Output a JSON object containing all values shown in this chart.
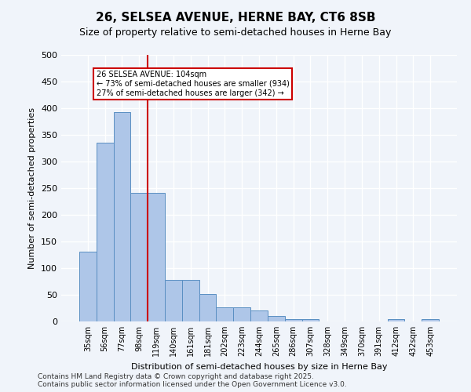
{
  "title_line1": "26, SELSEA AVENUE, HERNE BAY, CT6 8SB",
  "title_line2": "Size of property relative to semi-detached houses in Herne Bay",
  "xlabel": "Distribution of semi-detached houses by size in Herne Bay",
  "ylabel": "Number of semi-detached properties",
  "categories": [
    "35sqm",
    "56sqm",
    "77sqm",
    "98sqm",
    "119sqm",
    "140sqm",
    "161sqm",
    "181sqm",
    "202sqm",
    "223sqm",
    "244sqm",
    "265sqm",
    "286sqm",
    "307sqm",
    "328sqm",
    "349sqm",
    "370sqm",
    "391sqm",
    "412sqm",
    "432sqm",
    "453sqm"
  ],
  "values": [
    131,
    335,
    392,
    241,
    241,
    78,
    78,
    51,
    26,
    26,
    20,
    10,
    5,
    5,
    0,
    0,
    0,
    0,
    5,
    0,
    5
  ],
  "bar_color": "#aec6e8",
  "bar_edge_color": "#5a8fc2",
  "vline_x": 3,
  "vline_color": "#cc0000",
  "annotation_text": "26 SELSEA AVENUE: 104sqm\n← 73% of semi-detached houses are smaller (934)\n27% of semi-detached houses are larger (342) →",
  "annotation_box_color": "#ffffff",
  "annotation_box_edge": "#cc0000",
  "ylim": [
    0,
    500
  ],
  "yticks": [
    0,
    50,
    100,
    150,
    200,
    250,
    300,
    350,
    400,
    450,
    500
  ],
  "footer_text": "Contains HM Land Registry data © Crown copyright and database right 2025.\nContains public sector information licensed under the Open Government Licence v3.0.",
  "background_color": "#f0f4fa",
  "plot_background": "#f0f4fa",
  "grid_color": "#ffffff"
}
